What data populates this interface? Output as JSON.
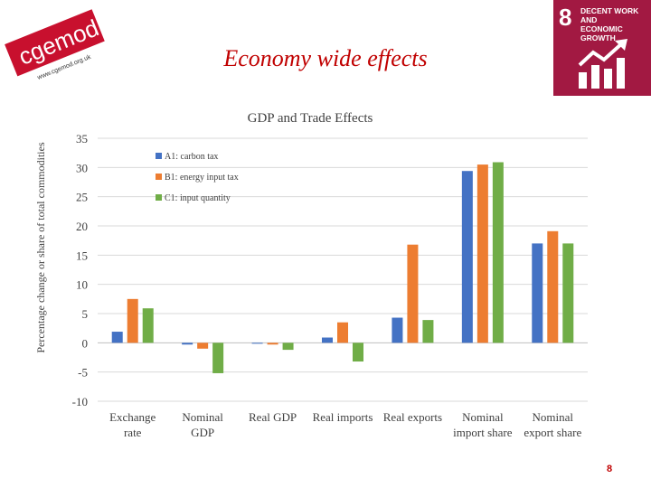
{
  "logo": {
    "text": "cgemod",
    "url": "www.cgemod.org.uk"
  },
  "page": {
    "title": "Economy wide effects",
    "number": "8"
  },
  "sdg": {
    "number": "8",
    "line1": "DECENT WORK AND",
    "line2": "ECONOMIC GROWTH",
    "color": "#a21942"
  },
  "chart_data": {
    "type": "bar",
    "title": "GDP and Trade Effects",
    "xlabel": "",
    "ylabel": "Percentage change or share of total commodities",
    "ylim": [
      -10,
      35
    ],
    "yticks": [
      35,
      30,
      25,
      20,
      15,
      10,
      5,
      0,
      -5,
      -10
    ],
    "categories": [
      [
        "Exchange",
        "rate"
      ],
      [
        "Nominal",
        "GDP"
      ],
      [
        "Real GDP"
      ],
      [
        "Real imports"
      ],
      [
        "Real exports"
      ],
      [
        "Nominal",
        "import share"
      ],
      [
        "Nominal",
        "export share"
      ]
    ],
    "series": [
      {
        "name": "A1: carbon tax",
        "color": "#4472c4",
        "values": [
          1.9,
          -0.3,
          -0.1,
          0.9,
          4.3,
          29.4,
          17.0
        ]
      },
      {
        "name": "B1: energy input tax",
        "color": "#ed7d31",
        "values": [
          7.5,
          -1.0,
          -0.3,
          3.5,
          16.8,
          30.5,
          19.1
        ]
      },
      {
        "name": "C1: input quantity",
        "color": "#70ad47",
        "values": [
          5.9,
          -5.2,
          -1.2,
          -3.2,
          3.9,
          30.9,
          17.0
        ]
      }
    ],
    "legend": "top-left"
  }
}
